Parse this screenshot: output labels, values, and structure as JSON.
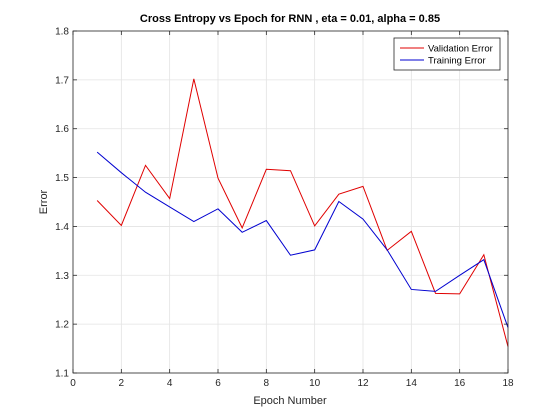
{
  "chart_data": {
    "type": "line",
    "title": "Cross Entropy vs Epoch for RNN , eta = 0.01, alpha = 0.85",
    "xlabel": "Epoch Number",
    "ylabel": "Error",
    "xlim": [
      0,
      18
    ],
    "ylim": [
      1.1,
      1.8
    ],
    "xticks": [
      0,
      2,
      4,
      6,
      8,
      10,
      12,
      14,
      16,
      18
    ],
    "yticks": [
      1.1,
      1.2,
      1.3,
      1.4,
      1.5,
      1.6,
      1.7,
      1.8
    ],
    "grid": true,
    "legend_position": "top-right",
    "x": [
      1,
      2,
      3,
      4,
      5,
      6,
      7,
      8,
      9,
      10,
      11,
      12,
      13,
      14,
      15,
      16,
      17,
      18
    ],
    "series": [
      {
        "name": "Validation Error",
        "color": "#e00000",
        "values": [
          1.453,
          1.402,
          1.525,
          1.457,
          1.702,
          1.499,
          1.397,
          1.517,
          1.514,
          1.401,
          1.466,
          1.482,
          1.351,
          1.39,
          1.263,
          1.262,
          1.342,
          1.154
        ]
      },
      {
        "name": "Training Error",
        "color": "#0000d0",
        "values": [
          1.552,
          1.51,
          1.47,
          1.44,
          1.41,
          1.436,
          1.388,
          1.412,
          1.341,
          1.352,
          1.451,
          1.415,
          1.352,
          1.271,
          1.267,
          1.3,
          1.332,
          1.193
        ]
      }
    ]
  }
}
